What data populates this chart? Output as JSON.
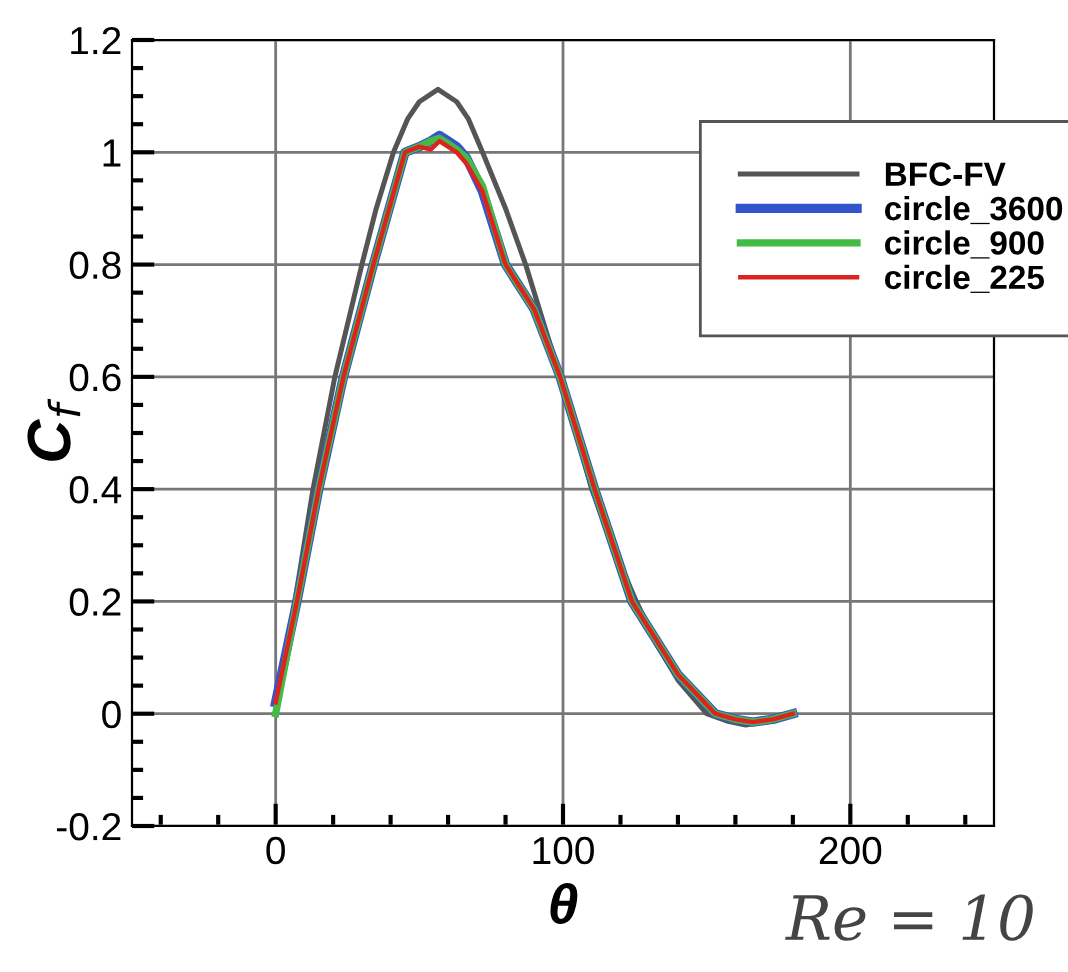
{
  "chart_data": {
    "type": "line",
    "xlabel": "θ",
    "ylabel": "C$_{f}$",
    "annotations": [
      "Re = 10"
    ],
    "xlim": [
      -50,
      250
    ],
    "xticks": [
      0,
      100,
      200
    ],
    "ylim": [
      -0.2,
      1.2
    ],
    "yticks": [
      -0.2,
      0,
      0.2,
      0.4,
      0.6,
      0.8,
      1,
      1.2
    ],
    "grid": true,
    "legend": "right",
    "line_style": "solid",
    "marker": "none",
    "series": [
      {
        "name": "BFC-FV",
        "color": "#555555",
        "x": [
          0,
          6.7,
          13,
          20.6,
          30,
          35,
          41,
          46,
          50,
          56.5,
          63,
          67,
          72,
          80,
          87,
          93,
          99,
          110,
          118,
          125.5,
          133,
          140,
          150,
          157,
          163.6,
          172,
          180
        ],
        "values": [
          0,
          0.2,
          0.4,
          0.6,
          0.8,
          0.9,
          1.0,
          1.06,
          1.09,
          1.112,
          1.09,
          1.06,
          1.0,
          0.9,
          0.8,
          0.7,
          0.6,
          0.4,
          0.29,
          0.2,
          0.12,
          0.06,
          0,
          -0.013,
          -0.02,
          -0.012,
          0
        ]
      },
      {
        "name": "circle_3600",
        "color": "#3355cc",
        "x": [
          0,
          7.4,
          15,
          23.6,
          34,
          45,
          50,
          54,
          57,
          60,
          63,
          66.4,
          72,
          80,
          90,
          99,
          111,
          124,
          140,
          153,
          160,
          166,
          173,
          180
        ],
        "values": [
          0.02,
          0.2,
          0.4,
          0.6,
          0.8,
          1.0,
          1.01,
          1.02,
          1.03,
          1.02,
          1.01,
          0.99,
          0.93,
          0.8,
          0.72,
          0.6,
          0.4,
          0.2,
          0.07,
          0,
          -0.01,
          -0.015,
          -0.01,
          0
        ]
      },
      {
        "name": "circle_900",
        "color": "#44bb44",
        "x": [
          0,
          7.4,
          15,
          23.6,
          34,
          45,
          50,
          54,
          57,
          60,
          63,
          66.4,
          72,
          80,
          90,
          99,
          111,
          124,
          140,
          153,
          160,
          166,
          173,
          180
        ],
        "values": [
          0,
          0.2,
          0.4,
          0.6,
          0.8,
          1.0,
          1.01,
          1.02,
          1.025,
          1.015,
          1.005,
          0.99,
          0.94,
          0.8,
          0.72,
          0.6,
          0.4,
          0.2,
          0.07,
          0,
          -0.01,
          -0.015,
          -0.01,
          0
        ]
      },
      {
        "name": "circle_225",
        "color": "#dd2222",
        "x": [
          0,
          7.4,
          15,
          23.6,
          34,
          45,
          50,
          54,
          57,
          60,
          63,
          66.4,
          72,
          80,
          90,
          99,
          111,
          124,
          140,
          153,
          160,
          166,
          173,
          180
        ],
        "values": [
          0.02,
          0.2,
          0.4,
          0.6,
          0.8,
          1.0,
          1.01,
          1.005,
          1.02,
          1.01,
          1.0,
          0.98,
          0.93,
          0.8,
          0.72,
          0.6,
          0.4,
          0.2,
          0.07,
          0,
          -0.01,
          -0.015,
          -0.01,
          0
        ]
      }
    ]
  }
}
